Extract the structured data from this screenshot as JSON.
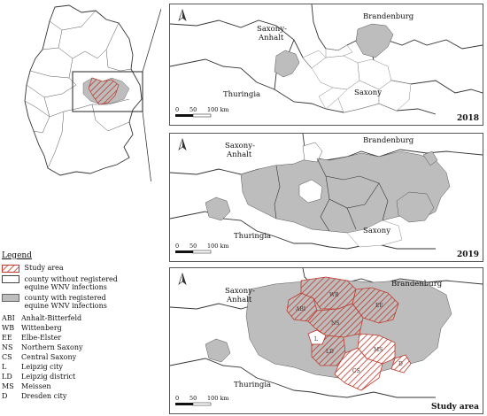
{
  "panels": [
    {
      "year_label": "2018",
      "labels": {
        "brandenburg": "Brandenburg",
        "saxony_anhalt_1": "Saxony-",
        "saxony_anhalt_2": "Anhalt",
        "thuringia": "Thuringia",
        "saxony": "Saxony"
      }
    },
    {
      "year_label": "2019",
      "labels": {
        "brandenburg": "Brandenburg",
        "saxony_anhalt_1": "Saxony-",
        "saxony_anhalt_2": "Anhalt",
        "thuringia": "Thuringia",
        "saxony": "Saxony"
      }
    },
    {
      "year_label": "Study area",
      "labels": {
        "brandenburg": "Brandenburg",
        "saxony_anhalt_1": "Saxony-",
        "saxony_anhalt_2": "Anhalt",
        "thuringia": "Thuringia"
      },
      "district_codes": [
        "ABI",
        "WB",
        "EE",
        "NS",
        "L",
        "LD",
        "MS",
        "CS",
        "D"
      ]
    }
  ],
  "scale": {
    "ticks": [
      "0",
      "50",
      "100 km"
    ]
  },
  "north_arrow": "north-arrow-icon",
  "legend": {
    "title": "Legend",
    "items": [
      {
        "label": "Study area",
        "symbol": "hatched-red"
      },
      {
        "label": "county without registered",
        "label2": "equine WNV infections",
        "symbol": "white"
      },
      {
        "label": "county with registered",
        "label2": "equine WNV infections",
        "symbol": "grey"
      }
    ],
    "abbreviations": [
      {
        "code": "ABI",
        "name": "Anhalt-Bitterfeld"
      },
      {
        "code": "WB",
        "name": "Wittenberg"
      },
      {
        "code": "EE",
        "name": "Elbe-Elster"
      },
      {
        "code": "NS",
        "name": "Northern Saxony"
      },
      {
        "code": "CS",
        "name": "Central Saxony"
      },
      {
        "code": "L",
        "name": "Leipzig city"
      },
      {
        "code": "LD",
        "name": "Leipzig district"
      },
      {
        "code": "MS",
        "name": "Meissen"
      },
      {
        "code": "D",
        "name": "Dresden city"
      }
    ]
  },
  "colors": {
    "grey_fill": "#bdbdbd",
    "hatch_red": "#c0392b",
    "border": "#444444"
  }
}
